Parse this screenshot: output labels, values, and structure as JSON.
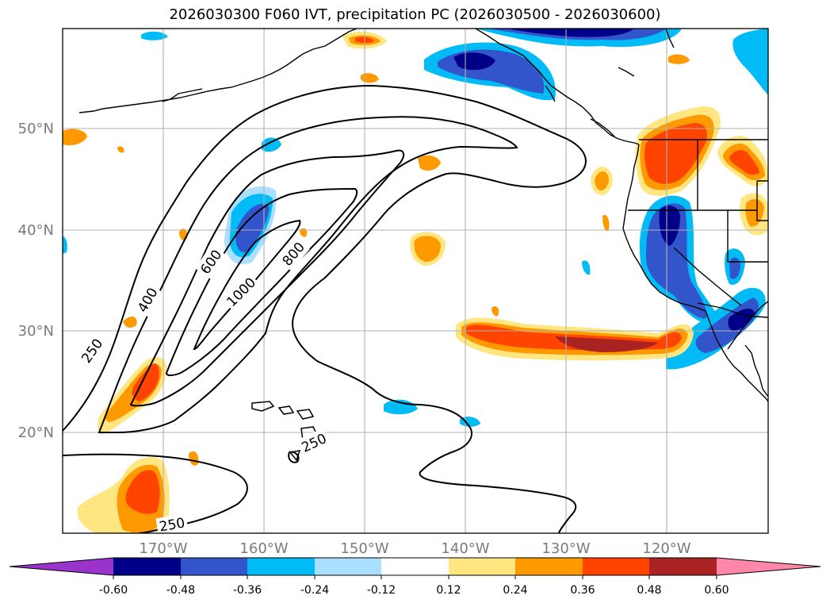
{
  "title": "2026030300 F060 IVT, precipitation PC (2026030500 - 2026030600)",
  "map": {
    "lat_labels": [
      "50°N",
      "40°N",
      "30°N",
      "20°N"
    ],
    "lon_labels": [
      "170°W",
      "160°W",
      "150°W",
      "140°W",
      "130°W",
      "120°W"
    ],
    "ivt_contour_levels": [
      250,
      400,
      600,
      800,
      1000
    ],
    "ivt_contour_labels": [
      "250",
      "400",
      "600",
      "800",
      "1000",
      "250",
      "250"
    ]
  },
  "colorbar": {
    "ticks": [
      "-0.60",
      "-0.48",
      "-0.36",
      "-0.24",
      "-0.12",
      "0.12",
      "0.24",
      "0.36",
      "0.48",
      "0.60"
    ],
    "colors": [
      "#9933cc",
      "#000088",
      "#3355cc",
      "#00bbf5",
      "#aadfff",
      "#ffffff",
      "#ffe680",
      "#ff9900",
      "#ff4400",
      "#aa2222",
      "#ff88aa"
    ]
  }
}
